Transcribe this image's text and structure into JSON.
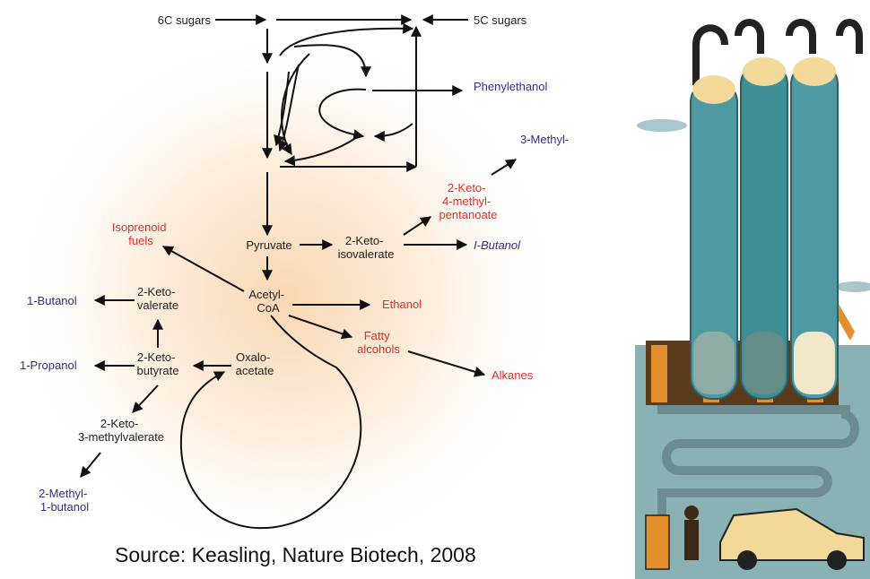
{
  "diagram": {
    "nodes": {
      "sugars6": "6C sugars",
      "sugars5": "5C sugars",
      "phenylethanol": "Phenylethanol",
      "methyl3": "3-Methyl-",
      "keto4methyl": [
        "2-Keto-",
        "4-methyl-",
        "pentanoate"
      ],
      "isoprenoid": [
        "Isoprenoid",
        "fuels"
      ],
      "pyruvate": "Pyruvate",
      "ketoisovalerate": [
        "2-Keto-",
        "isovalerate"
      ],
      "ibutanol": "I-Butanol",
      "butanol1": "1-Butanol",
      "ketovalerate": [
        "2-Keto-",
        "valerate"
      ],
      "acetylcoa": [
        "Acetyl-",
        "CoA"
      ],
      "ethanol": "Ethanol",
      "fattyalcohols": [
        "Fatty",
        "alcohols"
      ],
      "propanol1": "1-Propanol",
      "ketobutyrate": [
        "2-Keto-",
        "butyrate"
      ],
      "oxaloacetate": [
        "Oxalo-",
        "acetate"
      ],
      "alkanes": "Alkanes",
      "ketomethylvalerate": [
        "2-Keto-",
        "3-methylvalerate"
      ],
      "methylbutanol": [
        "2-Methyl-",
        "1-butanol"
      ]
    },
    "colors": {
      "intermediate": "#222222",
      "product_red": "#e0302a",
      "product_purple": "#3a2a8c",
      "glow": "#f7cfa3"
    }
  },
  "source": "Source: Keasling, Nature Biotech, 2008",
  "illustration": {
    "colors": {
      "sky": "#8ab1b4",
      "tank": "#4f9aa2",
      "frame": "#e3902c",
      "car": "#f2d99a",
      "pipe": "#6c8c92"
    }
  }
}
